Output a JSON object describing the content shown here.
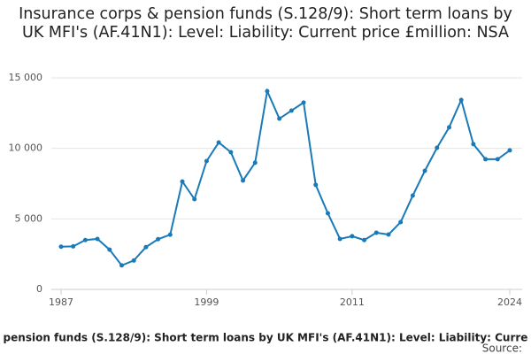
{
  "chart_data": {
    "type": "line",
    "title": "Insurance corps & pension funds (S.128/9): Short term loans by UK MFI's (AF.41N1): Level: Liability: Current price £million: NSA",
    "footer": "pension funds (S.128/9): Short term loans by UK MFI's (AF.41N1): Level: Liability: Curre",
    "source": "Source:",
    "x": [
      1987,
      1988,
      1989,
      1990,
      1991,
      1992,
      1993,
      1994,
      1995,
      1996,
      1997,
      1998,
      1999,
      2000,
      2001,
      2002,
      2003,
      2004,
      2005,
      2006,
      2007,
      2008,
      2009,
      2010,
      2011,
      2012,
      2013,
      2014,
      2015,
      2016,
      2017,
      2018,
      2019,
      2020,
      2021,
      2022,
      2023,
      2024
    ],
    "series": [
      {
        "color": "#1a7ab8",
        "values": [
          3030,
          3050,
          3500,
          3580,
          2820,
          1700,
          2050,
          3000,
          3560,
          3880,
          7650,
          6400,
          9100,
          10420,
          9730,
          7720,
          8980,
          14060,
          12110,
          12680,
          13250,
          7410,
          5400,
          3580,
          3770,
          3500,
          4020,
          3890,
          4770,
          6650,
          8410,
          10040,
          11490,
          13430,
          10300,
          9230,
          9230,
          9860
        ]
      }
    ],
    "xlim": [
      1987,
      2024
    ],
    "xticks": [
      1987,
      1999,
      2011,
      2024
    ],
    "ylim": [
      0,
      15000
    ],
    "yticks": [
      0,
      {
        "value": 5000,
        "label": "5 000"
      },
      {
        "value": 10000,
        "label": "10 000"
      },
      {
        "value": 15000,
        "label": "15 000"
      }
    ],
    "grid": true
  }
}
